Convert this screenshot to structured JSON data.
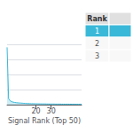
{
  "chart_data": {
    "type": "area",
    "xlabel": "Signal Rank (Top 50)",
    "x": [
      1,
      2,
      3,
      4,
      5,
      6,
      7,
      8,
      9,
      10,
      11,
      12,
      13,
      14,
      15,
      16,
      17,
      18,
      19,
      20,
      21,
      22,
      23,
      24,
      25,
      26,
      27,
      28,
      29,
      30,
      31,
      32,
      33,
      34,
      35,
      36,
      37,
      38,
      39,
      40,
      41,
      42,
      43,
      44,
      45,
      46,
      47,
      48,
      49,
      50
    ],
    "values": [
      0.95,
      0.1,
      0.065,
      0.05,
      0.042,
      0.037,
      0.033,
      0.03,
      0.028,
      0.026,
      0.024,
      0.022,
      0.021,
      0.019,
      0.018,
      0.017,
      0.016,
      0.016,
      0.015,
      0.014,
      0.014,
      0.013,
      0.013,
      0.012,
      0.012,
      0.012,
      0.011,
      0.011,
      0.01,
      0.01,
      0.01,
      0.01,
      0.009,
      0.009,
      0.009,
      0.009,
      0.008,
      0.008,
      0.008,
      0.008,
      0.008,
      0.007,
      0.007,
      0.007,
      0.007,
      0.007,
      0.006,
      0.006,
      0.006,
      0.006
    ],
    "color": "#3ab8d8",
    "xlim": [
      1,
      50
    ],
    "xticks": [
      20,
      30
    ],
    "ylim": [
      0,
      1
    ],
    "yticks": [
      0,
      0.25,
      0.5,
      0.75,
      1
    ],
    "grid": true,
    "tick_labels": "x",
    "annotations": [
      "Rank",
      "1",
      "2",
      "3"
    ]
  }
}
